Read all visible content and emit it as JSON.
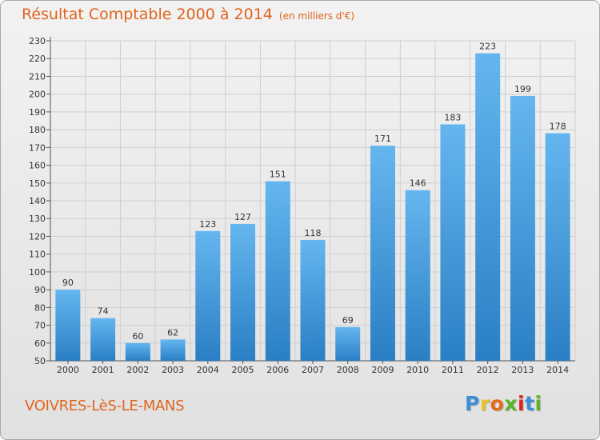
{
  "title": "Résultat Comptable 2000 à 2014",
  "unit_label": "(en milliers d'€)",
  "location": "VOIVRES-LèS-LE-MANS",
  "logo": {
    "letters": [
      "P",
      "r",
      "o",
      "x",
      "i",
      "t",
      "i"
    ],
    "colors": [
      "#3a8fd6",
      "#e8c22a",
      "#e36b1c",
      "#5ab52a",
      "#e0221a",
      "#3a8fd6",
      "#5ab52a"
    ]
  },
  "colors": {
    "bar_top": "#65b6ef",
    "bar_bottom": "#2a7fc4",
    "accent": "#e0641e"
  },
  "chart_data": {
    "type": "bar",
    "title": "Résultat Comptable 2000 à 2014",
    "xlabel": "",
    "ylabel": "(en milliers d'€)",
    "ylim": [
      50,
      230
    ],
    "ytick_step": 10,
    "grid": true,
    "categories": [
      "2000",
      "2001",
      "2002",
      "2003",
      "2004",
      "2005",
      "2006",
      "2007",
      "2008",
      "2009",
      "2010",
      "2011",
      "2012",
      "2013",
      "2014"
    ],
    "values": [
      90,
      74,
      60,
      62,
      123,
      127,
      151,
      118,
      69,
      171,
      146,
      183,
      223,
      199,
      178
    ]
  }
}
